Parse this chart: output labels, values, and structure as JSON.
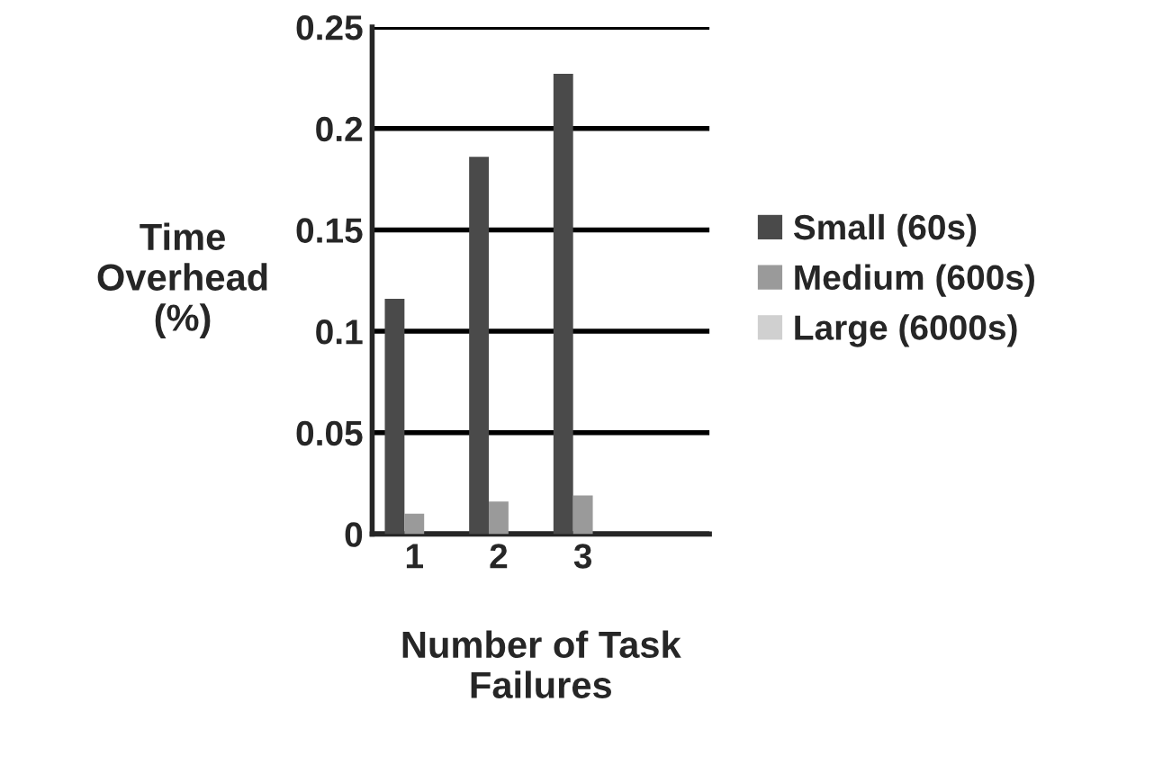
{
  "chart_data": {
    "type": "bar",
    "xlabel": "Number of Task\nFailures",
    "ylabel": "Time\nOverhead\n(%)",
    "categories": [
      "1",
      "2",
      "3",
      null
    ],
    "series": [
      {
        "name": "Small (60s)",
        "color": "#4a4a4a",
        "values": [
          0.116,
          0.186,
          0.227,
          null
        ]
      },
      {
        "name": "Medium (600s)",
        "color": "#9a9a9a",
        "values": [
          0.01,
          0.016,
          0.019,
          null
        ]
      },
      {
        "name": "Large (6000s)",
        "color": "#d0d0d0",
        "values": [
          null,
          0.0,
          null,
          null
        ]
      }
    ],
    "ylim": [
      0,
      0.25
    ],
    "yticks": [
      0,
      0.05,
      0.1,
      0.15,
      0.2,
      0.25
    ],
    "grid": "y",
    "legend": "right"
  }
}
